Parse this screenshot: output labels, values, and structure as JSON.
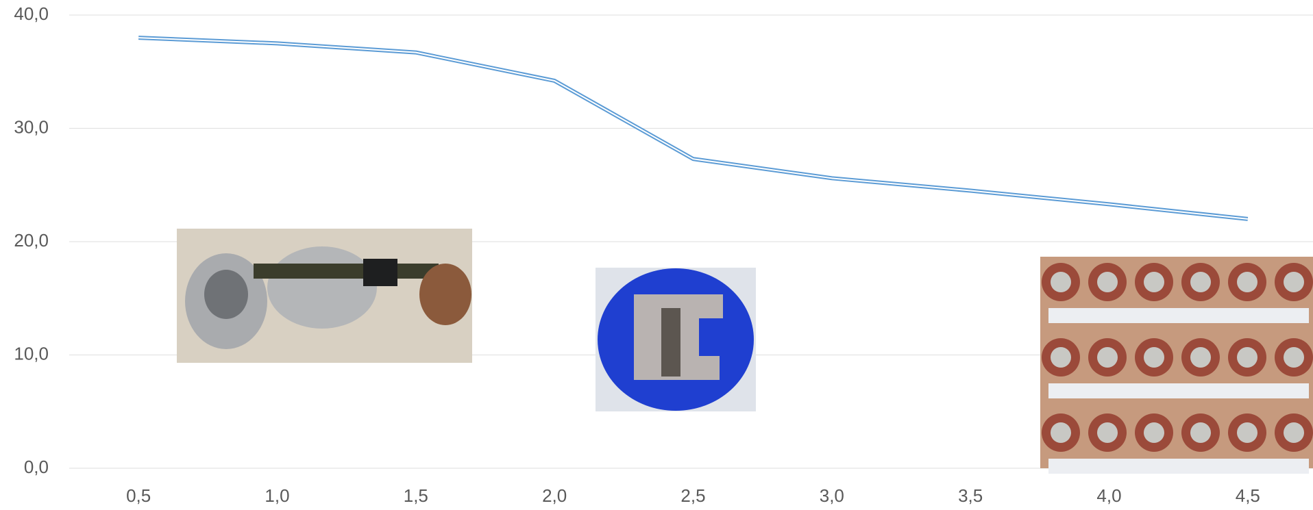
{
  "chart_data": {
    "type": "line",
    "x": [
      0.5,
      1.0,
      1.5,
      2.0,
      2.5,
      3.0,
      3.5,
      4.0,
      4.5
    ],
    "series": [
      {
        "color": "#5b9bd5",
        "values": [
          38.0,
          37.5,
          36.7,
          34.2,
          27.3,
          25.6,
          24.5,
          23.3,
          22.0
        ]
      }
    ],
    "xlim": [
      0.25,
      4.75
    ],
    "xticks": [
      {
        "value": 0.5,
        "label": "0,5"
      },
      {
        "value": 1.0,
        "label": "1,0"
      },
      {
        "value": 1.5,
        "label": "1,5"
      },
      {
        "value": 2.0,
        "label": "2,0"
      },
      {
        "value": 2.5,
        "label": "2,5"
      },
      {
        "value": 3.0,
        "label": "3,0"
      },
      {
        "value": 3.5,
        "label": "3,5"
      },
      {
        "value": 4.0,
        "label": "4,0"
      },
      {
        "value": 4.5,
        "label": "4,5"
      }
    ],
    "ylim": [
      0,
      40
    ],
    "yticks": [
      {
        "value": 0,
        "label": "0,0"
      },
      {
        "value": 10,
        "label": "10,0"
      },
      {
        "value": 20,
        "label": "20,0"
      },
      {
        "value": 30,
        "label": "30,0"
      },
      {
        "value": 40,
        "label": "40,0"
      }
    ],
    "grid": true
  }
}
